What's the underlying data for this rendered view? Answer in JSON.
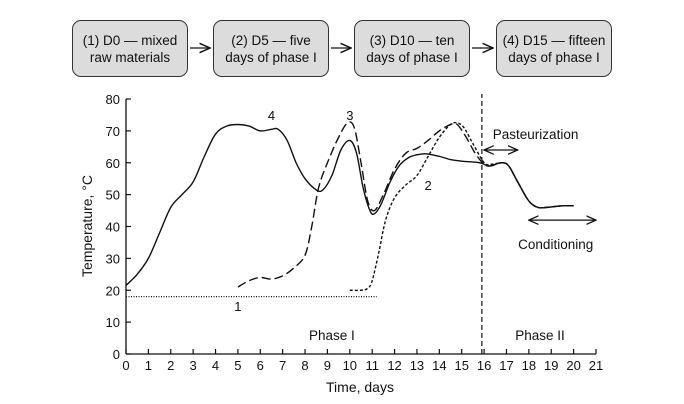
{
  "steps": [
    {
      "line1": "(1) D0 — mixed",
      "line2": "raw materials"
    },
    {
      "line1": "(2) D5 — five",
      "line2": "days of phase I"
    },
    {
      "line1": "(3) D10 — ten",
      "line2": "days of phase I"
    },
    {
      "line1": "(4) D15 — fifteen",
      "line2": "days of phase I"
    }
  ],
  "chart_data": {
    "type": "line",
    "title": "",
    "xlabel": "Time, days",
    "ylabel": "Temperature, °C",
    "xlim": [
      0,
      21
    ],
    "ylim": [
      0,
      80
    ],
    "xticks": [
      "0",
      "1",
      "2",
      "3",
      "4",
      "5",
      "6",
      "7",
      "8",
      "9",
      "10",
      "11",
      "12",
      "13",
      "14",
      "15",
      "16",
      "17",
      "18",
      "19",
      "20",
      "21"
    ],
    "yticks": [
      "0",
      "10",
      "20",
      "30",
      "40",
      "50",
      "60",
      "70",
      "80"
    ],
    "grid": false,
    "series": [
      {
        "name": "1",
        "style": "dotted",
        "label_at": [
          5,
          15
        ],
        "points": [
          [
            0,
            18
          ],
          [
            11.2,
            18
          ]
        ]
      },
      {
        "name": "2",
        "style": "short-dash",
        "label_at": [
          13.5,
          53
        ],
        "points": [
          [
            10,
            20
          ],
          [
            10.5,
            20
          ],
          [
            10.8,
            20.6
          ],
          [
            11,
            23
          ],
          [
            11.3,
            32
          ],
          [
            11.6,
            42
          ],
          [
            12,
            49
          ],
          [
            12.5,
            53
          ],
          [
            13,
            56
          ],
          [
            13.5,
            62
          ],
          [
            14,
            68
          ],
          [
            14.5,
            72
          ],
          [
            14.8,
            72.5
          ],
          [
            15.1,
            71
          ],
          [
            15.5,
            66
          ],
          [
            16,
            60
          ],
          [
            16.3,
            59.5
          ],
          [
            16.8,
            60
          ],
          [
            17.1,
            59
          ],
          [
            17.5,
            54
          ],
          [
            18,
            48
          ],
          [
            18.4,
            46
          ],
          [
            18.8,
            46
          ],
          [
            19.5,
            46.5
          ],
          [
            20,
            46.5
          ]
        ]
      },
      {
        "name": "3",
        "style": "dashed",
        "label_at": [
          10,
          75
        ],
        "points": [
          [
            5,
            21
          ],
          [
            5.5,
            23
          ],
          [
            6,
            24
          ],
          [
            6.5,
            23.5
          ],
          [
            7,
            24.5
          ],
          [
            7.5,
            27
          ],
          [
            8,
            31
          ],
          [
            8.3,
            40
          ],
          [
            8.6,
            52
          ],
          [
            9,
            60
          ],
          [
            9.5,
            68
          ],
          [
            9.9,
            72.5
          ],
          [
            10.2,
            71
          ],
          [
            10.5,
            60
          ],
          [
            10.8,
            48
          ],
          [
            11.1,
            45
          ],
          [
            11.5,
            50
          ],
          [
            12,
            58
          ],
          [
            12.5,
            63
          ],
          [
            13,
            64.5
          ],
          [
            13.5,
            67
          ],
          [
            14,
            70
          ],
          [
            14.5,
            72
          ],
          [
            14.8,
            72
          ],
          [
            15.2,
            68
          ],
          [
            15.6,
            63
          ],
          [
            16,
            59.5
          ],
          [
            16.3,
            59
          ],
          [
            16.8,
            60
          ],
          [
            17.1,
            59
          ],
          [
            17.5,
            54
          ],
          [
            18,
            48
          ],
          [
            18.4,
            46
          ],
          [
            18.8,
            46
          ],
          [
            19.5,
            46.5
          ],
          [
            20,
            46.5
          ]
        ]
      },
      {
        "name": "4",
        "style": "solid",
        "label_at": [
          6.5,
          75
        ],
        "points": [
          [
            0,
            21.5
          ],
          [
            0.5,
            25
          ],
          [
            1,
            30
          ],
          [
            1.5,
            38
          ],
          [
            2,
            46
          ],
          [
            2.5,
            50
          ],
          [
            3,
            54
          ],
          [
            3.5,
            62
          ],
          [
            4,
            69
          ],
          [
            4.5,
            71.5
          ],
          [
            5,
            72
          ],
          [
            5.5,
            71.5
          ],
          [
            6,
            70
          ],
          [
            6.5,
            70.5
          ],
          [
            6.8,
            70.5
          ],
          [
            7.2,
            67
          ],
          [
            7.6,
            60
          ],
          [
            8,
            55
          ],
          [
            8.5,
            51.5
          ],
          [
            8.8,
            51.5
          ],
          [
            9.2,
            56
          ],
          [
            9.6,
            64
          ],
          [
            10,
            67
          ],
          [
            10.3,
            63
          ],
          [
            10.6,
            52
          ],
          [
            10.9,
            45
          ],
          [
            11.1,
            44
          ],
          [
            11.4,
            47
          ],
          [
            11.8,
            54
          ],
          [
            12.2,
            59
          ],
          [
            12.6,
            61.5
          ],
          [
            13,
            62.5
          ],
          [
            13.4,
            62.8
          ],
          [
            14,
            62
          ],
          [
            14.5,
            61
          ],
          [
            15,
            60.5
          ],
          [
            15.8,
            60
          ],
          [
            16.2,
            59
          ],
          [
            16.5,
            59.5
          ],
          [
            16.8,
            60
          ],
          [
            17.1,
            59
          ],
          [
            17.5,
            54
          ],
          [
            18,
            48
          ],
          [
            18.4,
            46
          ],
          [
            18.8,
            46
          ],
          [
            19.5,
            46.5
          ],
          [
            20,
            46.5
          ]
        ]
      }
    ],
    "phase_divider_x": 15.9,
    "annotations": [
      {
        "text": "Phase I",
        "at": [
          9.2,
          6
        ]
      },
      {
        "text": "Phase II",
        "at": [
          18.5,
          6
        ]
      },
      {
        "text": "Pasteurization",
        "at": [
          18.3,
          69
        ],
        "arrow": [
          16,
          17.5,
          64
        ]
      },
      {
        "text": "Conditioning",
        "at": [
          19.2,
          34.5
        ],
        "arrow": [
          18,
          21,
          42
        ]
      }
    ]
  }
}
